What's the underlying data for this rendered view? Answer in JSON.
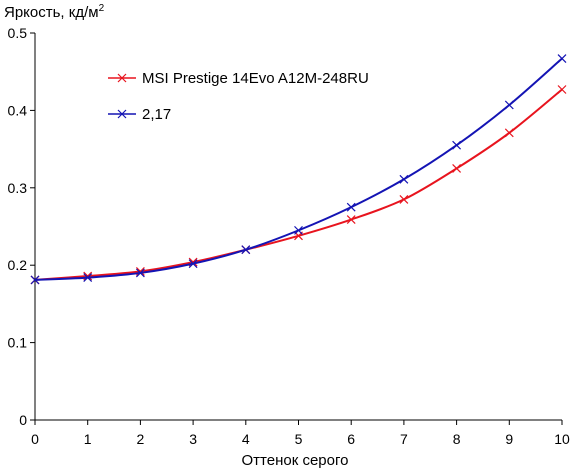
{
  "chart_data": {
    "type": "line",
    "ylabel": "Яркость, кд/м",
    "ylabel_sup": "2",
    "xlabel": "Оттенок серого",
    "xlim": [
      0,
      10
    ],
    "ylim": [
      0,
      0.5
    ],
    "x_ticks": [
      "0",
      "1",
      "2",
      "3",
      "4",
      "5",
      "6",
      "7",
      "8",
      "9",
      "10"
    ],
    "y_ticks": [
      "0",
      "0.1",
      "0.2",
      "0.3",
      "0.4",
      "0.5"
    ],
    "grid": false,
    "legend_position": "top-left",
    "x": [
      0,
      1,
      2,
      3,
      4,
      5,
      6,
      7,
      8,
      9,
      10
    ],
    "series": [
      {
        "name": "MSI Prestige 14Evo A12M-248RU",
        "color": "#e8141e",
        "marker": "x",
        "values": [
          0.181,
          0.186,
          0.192,
          0.204,
          0.22,
          0.238,
          0.259,
          0.285,
          0.325,
          0.371,
          0.427
        ]
      },
      {
        "name": "2,17",
        "color": "#1414b4",
        "marker": "x",
        "values": [
          0.181,
          0.184,
          0.19,
          0.202,
          0.22,
          0.245,
          0.275,
          0.311,
          0.355,
          0.407,
          0.467
        ]
      }
    ]
  }
}
